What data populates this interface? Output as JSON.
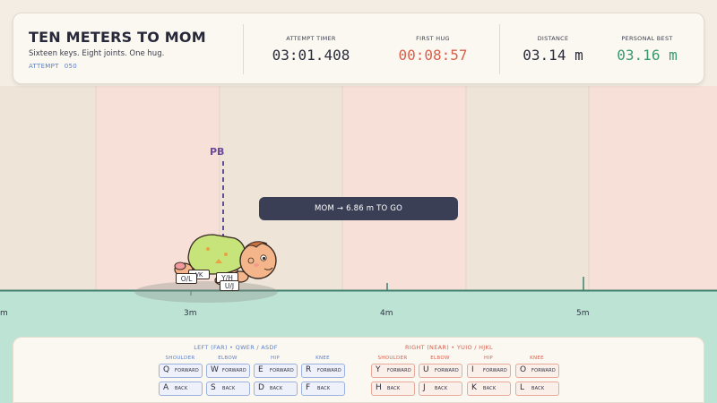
{
  "hud": {
    "title": "TEN METERS TO MOM",
    "subtitle": "Sixteen keys. Eight joints. One hug.",
    "attempt_label": "ATTEMPT",
    "attempt_value": "050",
    "stats": [
      {
        "label": "ATTEMPT TIMER",
        "value": "03:01.408",
        "color": "#2a2c3c"
      },
      {
        "label": "FIRST HUG",
        "value": "00:08:57",
        "color": "#d9604c"
      },
      {
        "label": "DISTANCE",
        "value": "03.14 m",
        "color": "#2a2c3c"
      },
      {
        "label": "PERSONAL BEST",
        "value": "03.16 m",
        "color": "#3a9a6e"
      }
    ]
  },
  "track": {
    "pb_label": "PB",
    "tooltip": "MOM  →  6.86 m TO GO",
    "meter_labels": [
      "m",
      "3m",
      "4m",
      "5m"
    ],
    "colors": {
      "panel_pink": "#f6e0d8",
      "panel_cream": "#f0e5d9",
      "ground": "#bde3d5",
      "ground_line": "#3f7f6e",
      "pb": "#6b4a9a"
    }
  },
  "baby": {
    "tags": [
      "O/L",
      "Y/H",
      "U/J",
      "I/K"
    ]
  },
  "keys": {
    "left": {
      "title": "LEFT (FAR)  •  QWER / ASDF",
      "color": "#5a7fc6",
      "joints": [
        "SHOULDER",
        "ELBOW",
        "HIP",
        "KNEE"
      ],
      "forward": [
        "Q",
        "W",
        "E",
        "R"
      ],
      "back": [
        "A",
        "S",
        "D",
        "F"
      ]
    },
    "right": {
      "title": "RIGHT (NEAR)  •  YUIO / HJKL",
      "color": "#d9604c",
      "joints": [
        "SHOULDER",
        "ELBOW",
        "HIP",
        "KNEE"
      ],
      "forward": [
        "Y",
        "U",
        "I",
        "O"
      ],
      "back": [
        "H",
        "J",
        "K",
        "L"
      ]
    },
    "forward_label": "FORWARD",
    "back_label": "BACK"
  }
}
